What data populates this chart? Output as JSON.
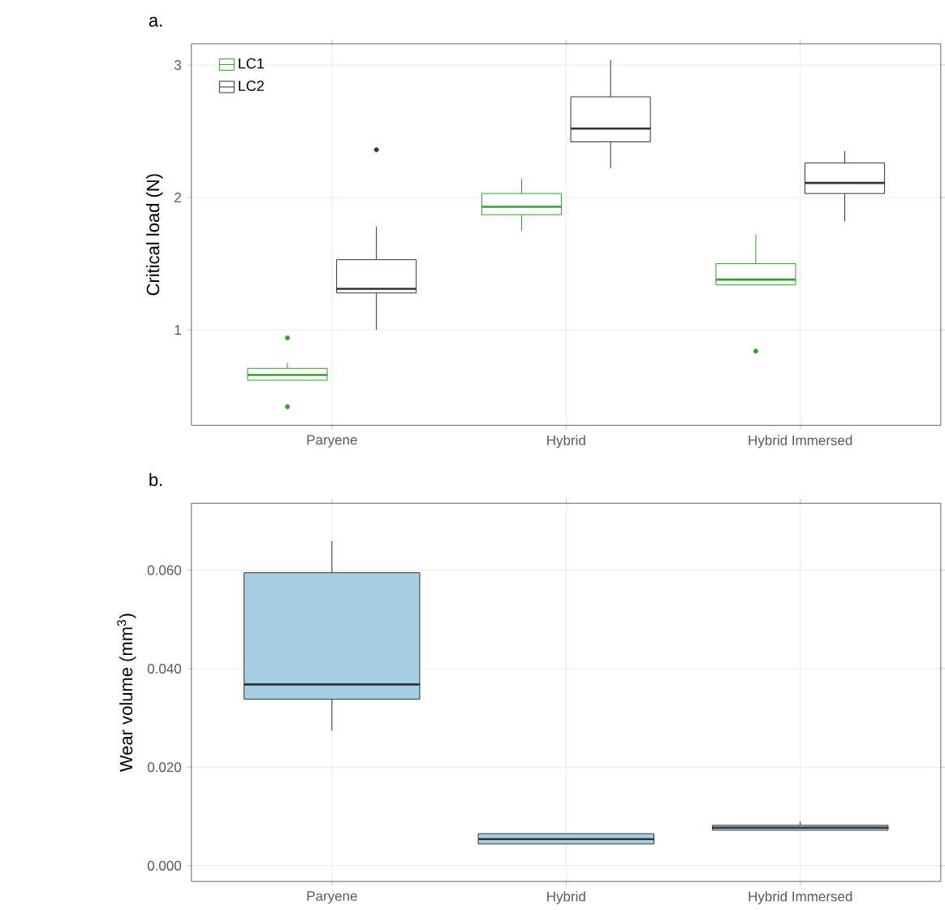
{
  "chart_data": [
    {
      "type": "box",
      "title": "a.",
      "ylabel": "Critical load (N)",
      "categories": [
        "Paryene",
        "Hybrid",
        "Hybrid Immersed"
      ],
      "series": [
        {
          "name": "LC1",
          "color": "#33a02c",
          "boxes": [
            {
              "low": 0.62,
              "q1": 0.62,
              "median": 0.66,
              "q3": 0.71,
              "high": 0.75,
              "outliers": [
                0.94,
                0.42
              ]
            },
            {
              "low": 1.75,
              "q1": 1.87,
              "median": 1.93,
              "q3": 2.03,
              "high": 2.14
            },
            {
              "low": 1.34,
              "q1": 1.34,
              "median": 1.38,
              "q3": 1.5,
              "high": 1.72,
              "outliers": [
                0.84
              ]
            }
          ]
        },
        {
          "name": "LC2",
          "color": "#333333",
          "boxes": [
            {
              "low": 1.0,
              "q1": 1.28,
              "median": 1.31,
              "q3": 1.53,
              "high": 1.78,
              "outliers": [
                2.36
              ]
            },
            {
              "low": 2.22,
              "q1": 2.42,
              "median": 2.52,
              "q3": 2.76,
              "high": 3.04
            },
            {
              "low": 1.82,
              "q1": 2.03,
              "median": 2.11,
              "q3": 2.26,
              "high": 2.35
            }
          ]
        }
      ],
      "ylim": [
        0.28,
        3.16
      ],
      "yticks": [
        1,
        2,
        3
      ],
      "grid": true,
      "legend": "top left"
    },
    {
      "type": "box",
      "title": "b.",
      "ylabel": "Wear volume (mm$^{3}$)",
      "categories": [
        "Paryene",
        "Hybrid",
        "Hybrid Immersed"
      ],
      "color": "#a6cee3",
      "boxes": [
        {
          "low": 0.0274,
          "q1": 0.0338,
          "median": 0.0368,
          "q3": 0.0595,
          "high": 0.0659
        },
        {
          "low": 0.0044,
          "q1": 0.0044,
          "median": 0.0054,
          "q3": 0.0065,
          "high": 0.0065
        },
        {
          "low": 0.0072,
          "q1": 0.0072,
          "median": 0.0077,
          "q3": 0.0082,
          "high": 0.009
        }
      ],
      "ylim": [
        -0.0032,
        0.0736
      ],
      "yticks": [
        {
          "value": 0,
          "label": "0.000"
        },
        {
          "value": 0.02,
          "label": "0.020"
        },
        {
          "value": 0.04,
          "label": "0.040"
        },
        {
          "value": 0.06,
          "label": "0.060"
        }
      ],
      "grid": true
    }
  ]
}
